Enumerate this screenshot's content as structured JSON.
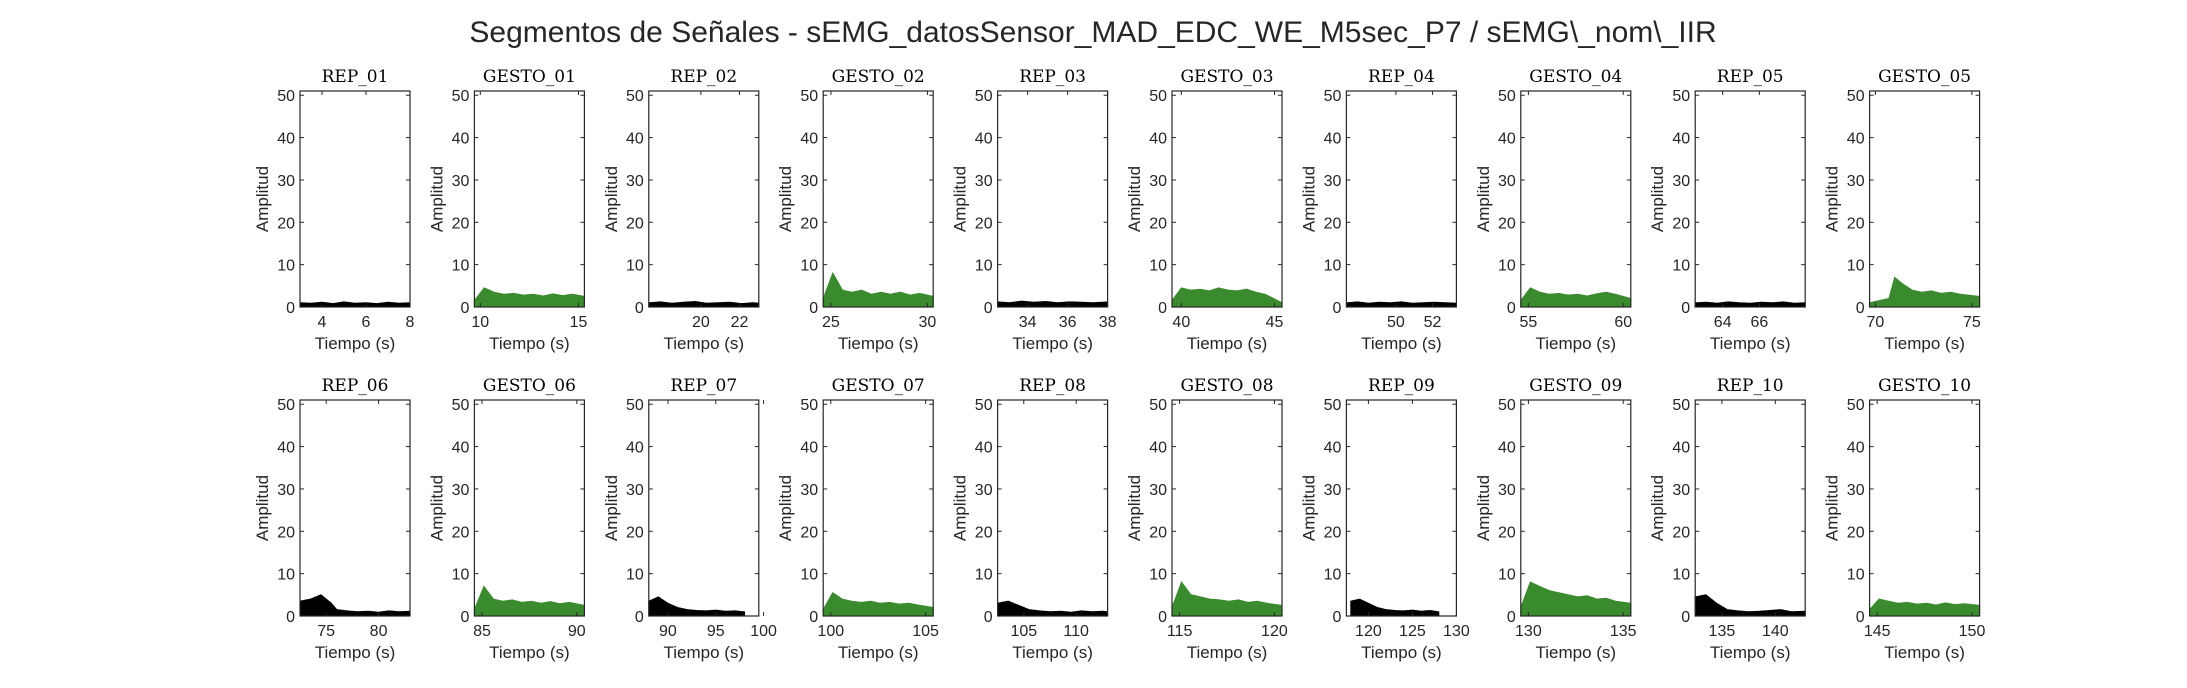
{
  "figure_title": "Segmentos de Señales - sEMG_datosSensor_MAD_EDC_WE_M5sec_P7 / sEMG\\_nom\\_IIR",
  "colors": {
    "rep": "#000000",
    "gesto": "#3a8a2e",
    "axis": "#262626"
  },
  "chart_data": [
    {
      "type": "area",
      "title": "REP_01",
      "series_color": "rep",
      "xlim": [
        3,
        8
      ],
      "xticks": [
        4,
        6,
        8
      ],
      "ylim": [
        0,
        51
      ],
      "yticks": [
        0,
        10,
        20,
        30,
        40,
        50
      ],
      "xlabel": "Tiempo (s)",
      "ylabel": "Amplitud",
      "x": [
        3,
        3.5,
        4,
        4.5,
        5,
        5.5,
        6,
        6.5,
        7,
        7.5,
        8
      ],
      "values": [
        1.0,
        0.9,
        1.1,
        0.8,
        1.2,
        0.9,
        1.0,
        0.8,
        1.1,
        0.9,
        1.0
      ]
    },
    {
      "type": "area",
      "title": "GESTO_01",
      "series_color": "gesto",
      "xlim": [
        9.7,
        15.3
      ],
      "xticks": [
        10,
        15
      ],
      "ylim": [
        0,
        51
      ],
      "yticks": [
        0,
        10,
        20,
        30,
        40,
        50
      ],
      "xlabel": "Tiempo (s)",
      "ylabel": "Amplitud",
      "x": [
        9.7,
        10.2,
        10.7,
        11.2,
        11.7,
        12.2,
        12.7,
        13.2,
        13.7,
        14.2,
        14.7,
        15.3
      ],
      "values": [
        1.5,
        4.5,
        3.5,
        3.0,
        3.2,
        2.8,
        3.0,
        2.6,
        3.1,
        2.7,
        3.0,
        2.5
      ]
    },
    {
      "type": "area",
      "title": "REP_02",
      "series_color": "rep",
      "xlim": [
        17.3,
        23
      ],
      "xticks": [
        20,
        22
      ],
      "ylim": [
        0,
        51
      ],
      "yticks": [
        0,
        10,
        20,
        30,
        40,
        50
      ],
      "xlabel": "Tiempo (s)",
      "ylabel": "Amplitud",
      "x": [
        17.3,
        17.9,
        18.5,
        19.1,
        19.7,
        20.3,
        20.9,
        21.5,
        22.1,
        22.7,
        23
      ],
      "values": [
        1.0,
        1.2,
        0.9,
        1.1,
        1.3,
        0.9,
        1.0,
        1.1,
        0.8,
        1.0,
        0.9
      ]
    },
    {
      "type": "area",
      "title": "GESTO_02",
      "series_color": "gesto",
      "xlim": [
        24.6,
        30.3
      ],
      "xticks": [
        25,
        30
      ],
      "ylim": [
        0,
        51
      ],
      "yticks": [
        0,
        10,
        20,
        30,
        40,
        50
      ],
      "xlabel": "Tiempo (s)",
      "ylabel": "Amplitud",
      "x": [
        24.6,
        25.1,
        25.6,
        26.1,
        26.6,
        27.1,
        27.6,
        28.1,
        28.6,
        29.1,
        29.6,
        30.3
      ],
      "values": [
        2.0,
        8.0,
        4.0,
        3.5,
        4.0,
        3.0,
        3.5,
        3.0,
        3.5,
        2.8,
        3.2,
        2.5
      ]
    },
    {
      "type": "area",
      "title": "REP_03",
      "series_color": "rep",
      "xlim": [
        32.5,
        38
      ],
      "xticks": [
        34,
        36,
        38
      ],
      "ylim": [
        0,
        51
      ],
      "yticks": [
        0,
        10,
        20,
        30,
        40,
        50
      ],
      "xlabel": "Tiempo (s)",
      "ylabel": "Amplitud",
      "x": [
        32.5,
        33.1,
        33.7,
        34.3,
        34.9,
        35.5,
        36.1,
        36.7,
        37.3,
        38
      ],
      "values": [
        1.2,
        1.0,
        1.4,
        1.1,
        1.3,
        1.0,
        1.2,
        1.1,
        1.0,
        1.2
      ]
    },
    {
      "type": "area",
      "title": "GESTO_03",
      "series_color": "gesto",
      "xlim": [
        39.5,
        45.4
      ],
      "xticks": [
        40,
        45
      ],
      "ylim": [
        0,
        51
      ],
      "yticks": [
        0,
        10,
        20,
        30,
        40,
        50
      ],
      "xlabel": "Tiempo (s)",
      "ylabel": "Amplitud",
      "x": [
        39.5,
        40.0,
        40.5,
        41.0,
        41.5,
        42.0,
        42.5,
        43.0,
        43.5,
        44.0,
        44.5,
        45.4
      ],
      "values": [
        1.5,
        4.5,
        4.0,
        4.2,
        3.8,
        4.5,
        4.0,
        3.8,
        4.2,
        3.5,
        3.0,
        1.0
      ]
    },
    {
      "type": "area",
      "title": "REP_04",
      "series_color": "rep",
      "xlim": [
        47.3,
        53.3
      ],
      "xticks": [
        50,
        52
      ],
      "ylim": [
        0,
        51
      ],
      "yticks": [
        0,
        10,
        20,
        30,
        40,
        50
      ],
      "xlabel": "Tiempo (s)",
      "ylabel": "Amplitud",
      "x": [
        47.3,
        47.9,
        48.5,
        49.1,
        49.7,
        50.3,
        50.9,
        51.5,
        52.1,
        52.7,
        53.3
      ],
      "values": [
        1.0,
        1.2,
        0.9,
        1.1,
        1.0,
        1.2,
        0.9,
        1.0,
        1.1,
        1.0,
        0.9
      ]
    },
    {
      "type": "area",
      "title": "GESTO_04",
      "series_color": "gesto",
      "xlim": [
        54.6,
        60.4
      ],
      "xticks": [
        55,
        60
      ],
      "ylim": [
        0,
        51
      ],
      "yticks": [
        0,
        10,
        20,
        30,
        40,
        50
      ],
      "xlabel": "Tiempo (s)",
      "ylabel": "Amplitud",
      "x": [
        54.6,
        55.1,
        55.6,
        56.1,
        56.6,
        57.1,
        57.6,
        58.1,
        58.6,
        59.1,
        59.6,
        60.4
      ],
      "values": [
        1.5,
        4.5,
        3.5,
        3.0,
        3.2,
        2.8,
        3.0,
        2.6,
        3.1,
        3.5,
        3.0,
        2.0
      ]
    },
    {
      "type": "area",
      "title": "REP_05",
      "series_color": "rep",
      "xlim": [
        62.5,
        68.5
      ],
      "xticks": [
        64,
        66
      ],
      "ylim": [
        0,
        51
      ],
      "yticks": [
        0,
        10,
        20,
        30,
        40,
        50
      ],
      "xlabel": "Tiempo (s)",
      "ylabel": "Amplitud",
      "x": [
        62.5,
        63.1,
        63.7,
        64.3,
        64.9,
        65.5,
        66.1,
        66.7,
        67.3,
        67.9,
        68.5
      ],
      "values": [
        1.0,
        1.1,
        0.9,
        1.2,
        1.0,
        0.9,
        1.1,
        1.0,
        1.2,
        0.9,
        1.0
      ]
    },
    {
      "type": "area",
      "title": "GESTO_05",
      "series_color": "gesto",
      "xlim": [
        69.7,
        75.4
      ],
      "xticks": [
        70,
        75
      ],
      "ylim": [
        0,
        51
      ],
      "yticks": [
        0,
        10,
        20,
        30,
        40,
        50
      ],
      "xlabel": "Tiempo (s)",
      "ylabel": "Amplitud",
      "x": [
        69.7,
        70.2,
        70.7,
        71.0,
        71.4,
        71.9,
        72.4,
        72.9,
        73.4,
        73.9,
        74.4,
        75.4
      ],
      "values": [
        1.0,
        1.5,
        2.0,
        7.0,
        5.5,
        4.0,
        3.5,
        3.8,
        3.2,
        3.5,
        3.0,
        2.5
      ]
    },
    {
      "type": "area",
      "title": "REP_06",
      "series_color": "rep",
      "xlim": [
        72.5,
        83
      ],
      "xticks": [
        75,
        80
      ],
      "ylim": [
        0,
        51
      ],
      "yticks": [
        0,
        10,
        20,
        30,
        40,
        50
      ],
      "xlabel": "Tiempo (s)",
      "ylabel": "Amplitud",
      "x": [
        72.5,
        73.5,
        74.5,
        75.5,
        76.0,
        77.0,
        78.0,
        79.0,
        80.0,
        81.0,
        82.0,
        83.0
      ],
      "values": [
        3.5,
        4.0,
        5.0,
        3.0,
        1.5,
        1.2,
        1.0,
        1.1,
        0.9,
        1.2,
        1.0,
        1.1
      ]
    },
    {
      "type": "area",
      "title": "GESTO_06",
      "series_color": "gesto",
      "xlim": [
        84.6,
        90.4
      ],
      "xticks": [
        85,
        90
      ],
      "ylim": [
        0,
        51
      ],
      "yticks": [
        0,
        10,
        20,
        30,
        40,
        50
      ],
      "xlabel": "Tiempo (s)",
      "ylabel": "Amplitud",
      "x": [
        84.6,
        85.1,
        85.6,
        86.1,
        86.6,
        87.1,
        87.6,
        88.1,
        88.6,
        89.1,
        89.6,
        90.4
      ],
      "values": [
        1.5,
        7.0,
        4.0,
        3.5,
        3.8,
        3.2,
        3.5,
        3.0,
        3.4,
        2.9,
        3.2,
        2.5
      ]
    },
    {
      "type": "area",
      "title": "REP_07",
      "series_color": "rep",
      "xlim": [
        88,
        99.5
      ],
      "xticks": [
        90,
        95,
        100
      ],
      "ylim": [
        0,
        51
      ],
      "yticks": [
        0,
        10,
        20,
        30,
        40,
        50
      ],
      "xlabel": "Tiempo (s)",
      "ylabel": "Amplitud",
      "x": [
        88,
        89,
        90,
        91,
        92,
        93,
        94,
        95,
        96,
        97,
        98
      ],
      "values": [
        3.5,
        4.5,
        3.0,
        2.0,
        1.5,
        1.3,
        1.2,
        1.4,
        1.1,
        1.2,
        1.0
      ]
    },
    {
      "type": "area",
      "title": "GESTO_07",
      "series_color": "gesto",
      "xlim": [
        99.6,
        105.4
      ],
      "xticks": [
        100,
        105
      ],
      "ylim": [
        0,
        51
      ],
      "yticks": [
        0,
        10,
        20,
        30,
        40,
        50
      ],
      "xlabel": "Tiempo (s)",
      "ylabel": "Amplitud",
      "x": [
        99.6,
        100.1,
        100.6,
        101.1,
        101.6,
        102.1,
        102.6,
        103.1,
        103.6,
        104.1,
        104.6,
        105.4
      ],
      "values": [
        1.5,
        5.5,
        4.0,
        3.5,
        3.2,
        3.5,
        3.0,
        3.2,
        2.8,
        3.0,
        2.6,
        2.0
      ]
    },
    {
      "type": "area",
      "title": "REP_08",
      "series_color": "rep",
      "xlim": [
        102.5,
        113
      ],
      "xticks": [
        105,
        110
      ],
      "ylim": [
        0,
        51
      ],
      "yticks": [
        0,
        10,
        20,
        30,
        40,
        50
      ],
      "xlabel": "Tiempo (s)",
      "ylabel": "Amplitud",
      "x": [
        102.5,
        103.5,
        104.5,
        105.5,
        106.5,
        107.5,
        108.5,
        109.5,
        110.5,
        111.5,
        112.5,
        113
      ],
      "values": [
        3.0,
        3.5,
        2.5,
        1.5,
        1.2,
        1.0,
        1.1,
        0.9,
        1.2,
        1.0,
        1.1,
        1.0
      ]
    },
    {
      "type": "area",
      "title": "GESTO_08",
      "series_color": "gesto",
      "xlim": [
        114.6,
        120.4
      ],
      "xticks": [
        115,
        120
      ],
      "ylim": [
        0,
        51
      ],
      "yticks": [
        0,
        10,
        20,
        30,
        40,
        50
      ],
      "xlabel": "Tiempo (s)",
      "ylabel": "Amplitud",
      "x": [
        114.6,
        115.1,
        115.6,
        116.1,
        116.6,
        117.1,
        117.6,
        118.1,
        118.6,
        119.1,
        119.6,
        120.4
      ],
      "values": [
        2.0,
        8.0,
        5.0,
        4.5,
        4.0,
        3.8,
        3.5,
        3.8,
        3.2,
        3.5,
        3.0,
        2.5
      ]
    },
    {
      "type": "area",
      "title": "REP_09",
      "series_color": "rep",
      "xlim": [
        117.5,
        130
      ],
      "xticks": [
        120,
        125,
        130
      ],
      "ylim": [
        0,
        51
      ],
      "yticks": [
        0,
        10,
        20,
        30,
        40,
        50
      ],
      "xlabel": "Tiempo (s)",
      "ylabel": "Amplitud",
      "x": [
        118,
        119,
        120,
        121,
        122,
        123,
        124,
        125,
        126,
        127,
        128
      ],
      "values": [
        3.5,
        4.0,
        3.0,
        2.0,
        1.5,
        1.3,
        1.2,
        1.4,
        1.1,
        1.3,
        1.0
      ]
    },
    {
      "type": "area",
      "title": "GESTO_09",
      "series_color": "gesto",
      "xlim": [
        129.6,
        135.4
      ],
      "xticks": [
        130,
        135
      ],
      "ylim": [
        0,
        51
      ],
      "yticks": [
        0,
        10,
        20,
        30,
        40,
        50
      ],
      "xlabel": "Tiempo (s)",
      "ylabel": "Amplitud",
      "x": [
        129.6,
        130.1,
        130.6,
        131.1,
        131.6,
        132.1,
        132.6,
        133.1,
        133.6,
        134.1,
        134.6,
        135.4
      ],
      "values": [
        2.0,
        8.0,
        7.0,
        6.0,
        5.5,
        5.0,
        4.5,
        4.8,
        4.0,
        4.2,
        3.5,
        3.0
      ]
    },
    {
      "type": "area",
      "title": "REP_10",
      "series_color": "rep",
      "xlim": [
        132.5,
        142.8
      ],
      "xticks": [
        135,
        140
      ],
      "ylim": [
        0,
        51
      ],
      "yticks": [
        0,
        10,
        20,
        30,
        40,
        50
      ],
      "xlabel": "Tiempo (s)",
      "ylabel": "Amplitud",
      "x": [
        132.5,
        133.5,
        134.5,
        135.5,
        136.5,
        137.5,
        138.5,
        139.5,
        140.5,
        141.5,
        142.8
      ],
      "values": [
        4.5,
        5.0,
        3.0,
        1.5,
        1.2,
        1.0,
        1.1,
        1.3,
        1.5,
        1.0,
        1.1
      ]
    },
    {
      "type": "area",
      "title": "GESTO_10",
      "series_color": "gesto",
      "xlim": [
        144.6,
        150.4
      ],
      "xticks": [
        145,
        150
      ],
      "ylim": [
        0,
        51
      ],
      "yticks": [
        0,
        10,
        20,
        30,
        40,
        50
      ],
      "xlabel": "Tiempo (s)",
      "ylabel": "Amplitud",
      "x": [
        144.6,
        145.1,
        145.6,
        146.1,
        146.6,
        147.1,
        147.6,
        148.1,
        148.6,
        149.1,
        149.6,
        150.4
      ],
      "values": [
        1.5,
        4.0,
        3.5,
        3.0,
        3.2,
        2.8,
        3.0,
        2.6,
        3.1,
        2.7,
        2.9,
        2.5
      ]
    }
  ]
}
